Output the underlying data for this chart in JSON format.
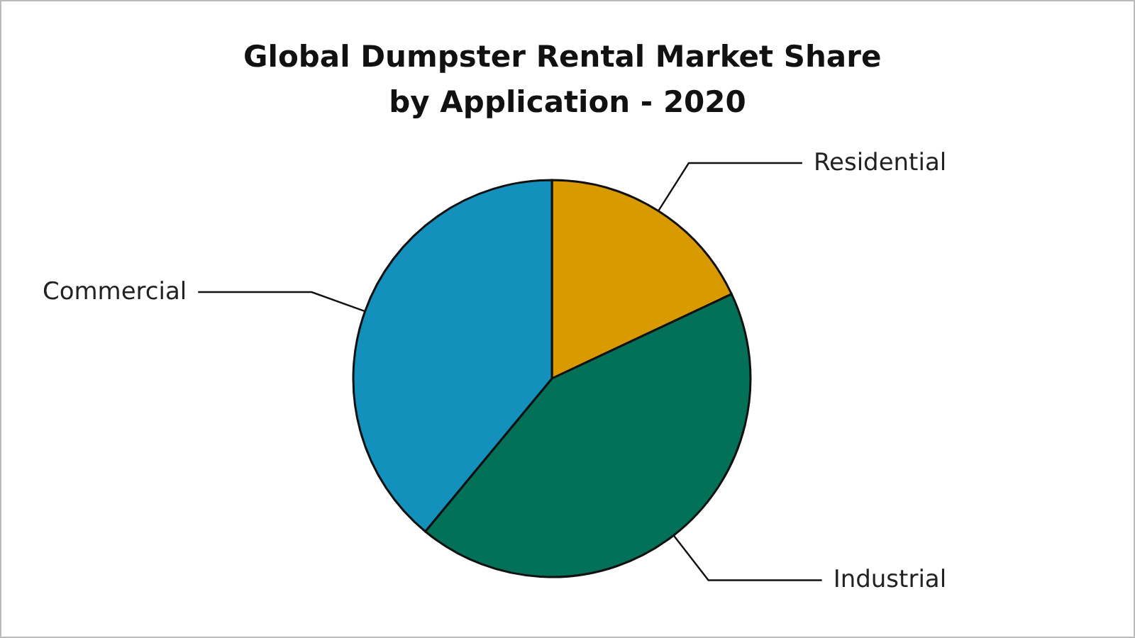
{
  "chart_data": {
    "type": "pie",
    "title": "Global Dumpster Rental Market Share by Application - 2020",
    "categories": [
      "Residential",
      "Industrial",
      "Commercial"
    ],
    "values": [
      18,
      43,
      39
    ],
    "colors": [
      "#d99a00",
      "#037058",
      "#1391bc"
    ]
  }
}
